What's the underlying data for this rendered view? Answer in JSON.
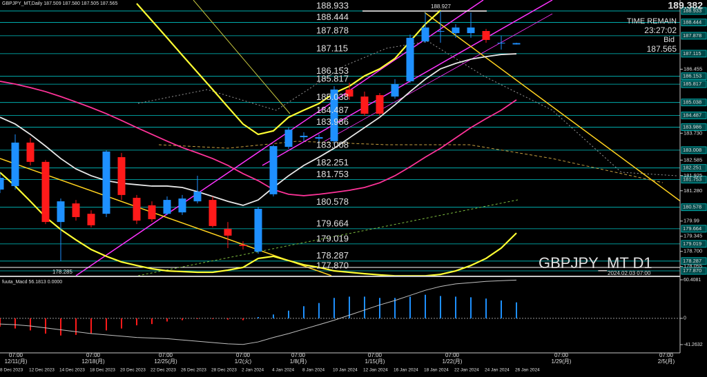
{
  "chart_data": [
    {
      "type": "candlestick",
      "title": "GBPJPY_MT,Daily  187.509 187.580 187.505 187.565",
      "symbol": "GBPJPY_MT  D1",
      "categories": [
        "8 Dec 2023",
        null,
        "12 Dec 2023",
        null,
        "14 Dec 2023",
        null,
        "18 Dec 2023",
        null,
        "20 Dec 2023",
        null,
        "22 Dec 2023",
        null,
        "26 Dec 2023",
        null,
        "28 Dec 2023",
        null,
        "2 Jan 2024",
        null,
        "4 Jan 2024",
        null,
        "8 Jan 2024",
        null,
        "10 Jan 2024",
        null,
        "12 Jan 2024",
        null,
        "16 Jan 2024",
        null,
        "18 Jan 2024",
        null,
        "22 Jan 2024",
        null,
        "24 Jan 2024",
        null,
        "26 Jan 2024"
      ],
      "open": [
        181.33,
        181.48,
        183.33,
        182.51,
        179.95,
        180.74,
        180.3,
        180.3,
        182.71,
        180.98,
        180.66,
        180.3,
        180.36,
        180.83,
        180.89,
        179.66,
        178.98,
        178.69,
        181.13,
        183.15,
        183.56,
        183.5,
        183.39,
        185.59,
        185.29,
        185.35,
        185.29,
        185.94,
        187.64,
        188.08,
        187.99,
        187.99,
        188.08,
        187.55,
        187.509
      ],
      "high": [
        182.06,
        183.68,
        183.53,
        182.59,
        180.95,
        180.89,
        180.45,
        183.0,
        182.89,
        181.1,
        180.83,
        181.04,
        181.1,
        181.92,
        181.04,
        179.95,
        179.13,
        180.6,
        183.24,
        183.97,
        183.77,
        183.68,
        185.73,
        185.88,
        185.5,
        185.44,
        186.03,
        187.93,
        188.87,
        188.927,
        188.37,
        188.87,
        188.17,
        187.87,
        187.58
      ],
      "low": [
        181.18,
        181.33,
        182.36,
        179.86,
        178.285,
        180.01,
        179.72,
        180.16,
        180.89,
        179.86,
        179.95,
        180.25,
        180.25,
        180.74,
        179.72,
        178.84,
        178.78,
        178.6,
        181.04,
        183.06,
        183.39,
        183.3,
        183.24,
        185.15,
        184.47,
        184.47,
        185.2,
        185.88,
        187.58,
        187.58,
        187.79,
        187.79,
        187.58,
        187.29,
        187.505
      ],
      "close": [
        181.83,
        183.33,
        182.51,
        179.95,
        180.83,
        180.16,
        179.81,
        182.95,
        181.1,
        180.01,
        180.07,
        180.89,
        180.95,
        181.24,
        179.78,
        179.37,
        178.93,
        180.51,
        183.18,
        183.88,
        183.62,
        183.56,
        185.59,
        185.29,
        184.56,
        184.56,
        185.82,
        187.79,
        188.23,
        188.08,
        188.23,
        188.23,
        187.7,
        187.58,
        187.565
      ],
      "up_color": "#1e90ff",
      "down_color": "#ff1a1a",
      "ylim": [
        177.665,
        189.4
      ],
      "yticks": [
        186.455,
        {
          "value": 183.73,
          "label": "183.730"
        },
        182.585,
        181.925,
        {
          "value": 181.28,
          "label": "181.280"
        },
        179.99,
        179.345,
        {
          "value": 178.7,
          "label": "178.700"
        },
        178.055
      ],
      "levels": [
        188.933,
        188.444,
        187.878,
        187.115,
        186.153,
        185.817,
        185.038,
        184.487,
        183.986,
        183.008,
        182.251,
        181.753,
        180.578,
        179.664,
        179.019,
        178.287,
        {
          "value": 177.87,
          "label": "177.870"
        }
      ],
      "level_color": "#00c8c8",
      "lines": [
        {
          "color": "#ff3399",
          "values": [
            185.94,
            185.82,
            185.67,
            185.5,
            185.29,
            185.06,
            184.82,
            184.56,
            184.27,
            183.97,
            183.68,
            183.39,
            183.12,
            182.89,
            182.65,
            182.36,
            182.01,
            181.71,
            181.33,
            181.13,
            181.07,
            181.13,
            181.21,
            181.3,
            181.42,
            181.62,
            181.92,
            182.3,
            182.71,
            183.09,
            183.53,
            183.97,
            184.35,
            184.71,
            185.15
          ]
        },
        {
          "color": "#e8e8e8",
          "values": [
            184.41,
            184.12,
            183.68,
            183.18,
            182.65,
            182.21,
            181.92,
            181.71,
            181.6,
            181.54,
            181.48,
            181.48,
            181.42,
            181.24,
            181.04,
            180.83,
            180.66,
            180.89,
            181.42,
            181.92,
            182.36,
            182.71,
            183.09,
            183.53,
            183.97,
            184.41,
            184.94,
            185.5,
            186.03,
            186.47,
            186.7,
            186.88,
            186.99,
            187.08,
            187.11
          ]
        },
        {
          "color": "#ffff33",
          "values": [
            null,
            null,
            null,
            null,
            null,
            null,
            null,
            null,
            null,
            189.25,
            188.52,
            187.79,
            187.05,
            186.32,
            185.59,
            184.85,
            184.12,
            183.68,
            183.83,
            184.41,
            184.71,
            184.99,
            185.44,
            185.73,
            186.17,
            186.47,
            186.91,
            187.64,
            188.37,
            188.96,
            null,
            null,
            null,
            null,
            null
          ]
        },
        {
          "color": "#ffff33",
          "values": [
            182.06,
            181.48,
            180.83,
            180.16,
            179.63,
            179.19,
            178.78,
            178.49,
            178.25,
            178.1,
            177.96,
            177.87,
            177.84,
            177.81,
            177.81,
            177.9,
            178.02,
            178.4,
            178.49,
            178.31,
            178.13,
            178.02,
            177.87,
            177.81,
            177.75,
            177.7,
            177.66,
            177.66,
            177.66,
            177.72,
            177.87,
            178.1,
            178.4,
            178.84,
            179.48
          ]
        }
      ],
      "annotations": {
        "high": 188.927,
        "low": 178.285,
        "top_price": 189.382,
        "time_remain_label": "TIME REMAIN",
        "time_remain": "23:27:02",
        "bid_label": "Bid",
        "bid": 187.565,
        "timestamp": "2024.02.03 07:00"
      },
      "time_axis": [
        {
          "time": "07:00",
          "date": "12/11(月)"
        },
        {
          "time": "07:00",
          "date": "12/18(月)"
        },
        {
          "time": "07:00",
          "date": "12/25(月)"
        },
        {
          "time": "07:00",
          "date": "1/2(火)"
        },
        {
          "time": "07:00",
          "date": "1/8(月)"
        },
        {
          "time": "07:00",
          "date": "1/15(月)"
        },
        {
          "time": "07:00",
          "date": "1/22(月)"
        },
        {
          "time": "07:00",
          "date": "1/29(月)"
        },
        {
          "time": "07:00",
          "date": "2/5(月)"
        }
      ]
    },
    {
      "type": "macd",
      "title": "fuuta_Macd 56.1813 0.0000",
      "values": [
        -13,
        -16,
        -19,
        -24,
        -27,
        -26,
        -24,
        -19,
        -16,
        -11,
        -9,
        -5,
        -3,
        -1,
        -1,
        -2,
        -3,
        2,
        6,
        12,
        19,
        24,
        32,
        34,
        34,
        32,
        32,
        34,
        37,
        35,
        34,
        33,
        31,
        28,
        25
      ],
      "color": "#1e90ff",
      "negative_color": "#ff1a1a",
      "signal": {
        "color": "#c0c0c0",
        "values": [
          -9,
          -10,
          -12,
          -15,
          -18,
          -21,
          -24,
          -26,
          -28,
          -30,
          -31,
          -32,
          -34,
          -36,
          -38,
          -40,
          -41,
          -37,
          -30,
          -24,
          -17,
          -10,
          -3,
          5,
          13,
          21,
          28,
          36,
          44,
          50,
          54,
          56,
          58,
          59,
          60
        ]
      },
      "ylim": [
        -41.2632,
        60.4081
      ],
      "yticks": [
        -41.2632,
        0,
        60.4081
      ]
    }
  ]
}
